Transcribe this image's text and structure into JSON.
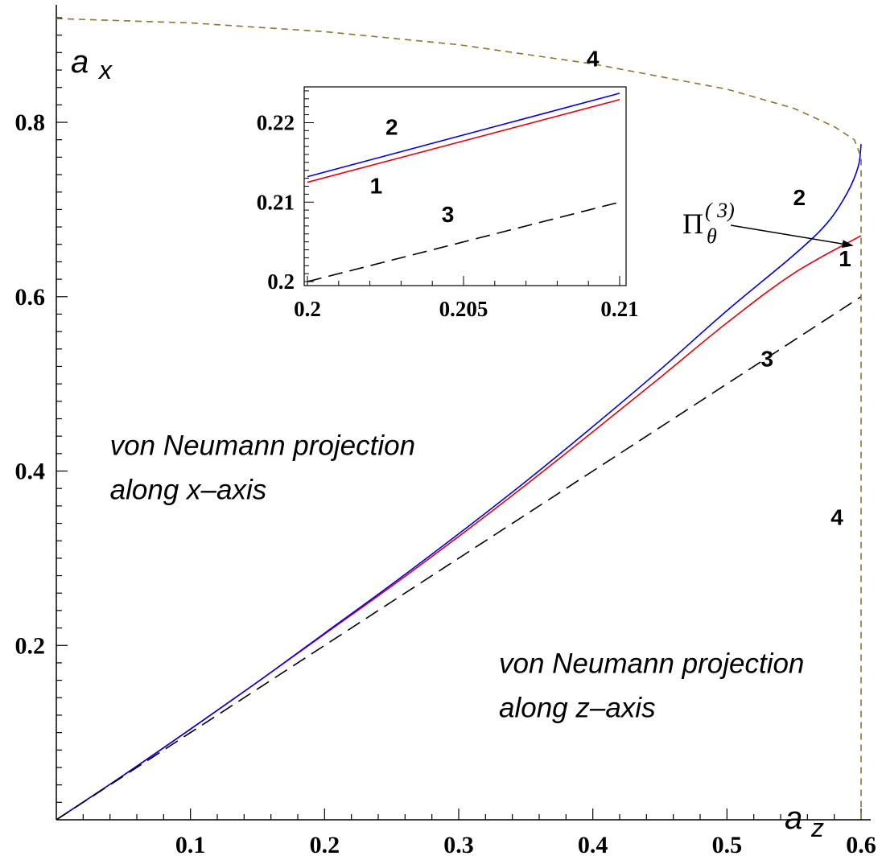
{
  "chart_data": {
    "type": "line",
    "xlabel": "a",
    "xlabel_sub": "z",
    "ylabel": "a",
    "ylabel_sub": "x",
    "xlim": [
      0,
      0.6
    ],
    "ylim": [
      0,
      0.92
    ],
    "xticks": [
      0.1,
      0.2,
      0.3,
      0.4,
      0.5,
      0.6
    ],
    "xtick_labels": [
      "0.1",
      "0.2",
      "0.3",
      "0.4",
      "0.5",
      "0.6"
    ],
    "yticks": [
      0.2,
      0.4,
      0.6,
      0.8
    ],
    "ytick_labels": [
      "0.2",
      "0.4",
      "0.6",
      "0.8"
    ],
    "series": [
      {
        "name": "1",
        "color": "#e8000b",
        "style": "solid",
        "x": [
          0,
          0.05,
          0.1,
          0.15,
          0.2,
          0.25,
          0.3,
          0.35,
          0.4,
          0.45,
          0.5,
          0.55,
          0.6
        ],
        "y": [
          0,
          0.051,
          0.104,
          0.158,
          0.213,
          0.268,
          0.325,
          0.384,
          0.445,
          0.507,
          0.57,
          0.627,
          0.67
        ]
      },
      {
        "name": "2",
        "color": "#0000e0",
        "style": "solid",
        "x": [
          0,
          0.05,
          0.1,
          0.15,
          0.2,
          0.25,
          0.3,
          0.35,
          0.4,
          0.45,
          0.5,
          0.55,
          0.575,
          0.59,
          0.598,
          0.6
        ],
        "y": [
          0,
          0.051,
          0.104,
          0.158,
          0.214,
          0.27,
          0.328,
          0.388,
          0.451,
          0.516,
          0.584,
          0.648,
          0.685,
          0.72,
          0.75,
          0.775
        ]
      },
      {
        "name": "3",
        "color": "#000000",
        "style": "dashed",
        "x": [
          0,
          0.6
        ],
        "y": [
          0,
          0.6
        ]
      },
      {
        "name": "4",
        "color": "#8b7530",
        "style": "dashed",
        "x": [
          0,
          0.1,
          0.2,
          0.3,
          0.4,
          0.5,
          0.55,
          0.58,
          0.595,
          0.6,
          0.6
        ],
        "y": [
          0.919,
          0.914,
          0.904,
          0.889,
          0.867,
          0.838,
          0.816,
          0.795,
          0.78,
          0.76,
          0
        ]
      }
    ],
    "curve_labels": [
      {
        "text": "1",
        "x": 0.588,
        "y": 0.635
      },
      {
        "text": "2",
        "x": 0.554,
        "y": 0.705
      },
      {
        "text": "3",
        "x": 0.53,
        "y": 0.52
      },
      {
        "text": "4",
        "x": 0.582,
        "y": 0.338
      },
      {
        "text": "4",
        "x": 0.4,
        "y": 0.864
      }
    ],
    "region_labels": [
      {
        "lines": [
          "von Neumann projection",
          "along x–axis"
        ],
        "x": 0.04,
        "y": 0.4
      },
      {
        "lines": [
          "von Neumann projection",
          "along z–axis"
        ],
        "x": 0.33,
        "y": 0.15
      }
    ],
    "annotation": {
      "text": "Π",
      "subscript": "θ",
      "superscript": "( 3)",
      "arrow_to_x": 0.598,
      "arrow_to_y": 0.668
    },
    "inset": {
      "xlim": [
        0.2,
        0.21
      ],
      "ylim": [
        0.1995,
        0.2245
      ],
      "xticks": [
        0.2,
        0.205,
        0.21
      ],
      "xtick_labels": [
        "0.2",
        "0.205",
        "0.21"
      ],
      "yticks": [
        0.2,
        0.21,
        0.22
      ],
      "ytick_labels": [
        "0.2",
        "0.21",
        "0.22"
      ],
      "series": [
        {
          "name": "1",
          "color": "#e8000b",
          "style": "solid",
          "x": [
            0.2,
            0.21
          ],
          "y": [
            0.2125,
            0.2229
          ]
        },
        {
          "name": "2",
          "color": "#0000e0",
          "style": "solid",
          "x": [
            0.2,
            0.21
          ],
          "y": [
            0.2132,
            0.2237
          ]
        },
        {
          "name": "3",
          "color": "#000000",
          "style": "dashed",
          "x": [
            0.2,
            0.21
          ],
          "y": [
            0.2,
            0.21
          ]
        }
      ],
      "curve_labels": [
        {
          "text": "2",
          "x": 0.2027,
          "y": 0.2185
        },
        {
          "text": "1",
          "x": 0.2022,
          "y": 0.2111
        },
        {
          "text": "3",
          "x": 0.2045,
          "y": 0.2075
        }
      ]
    }
  }
}
